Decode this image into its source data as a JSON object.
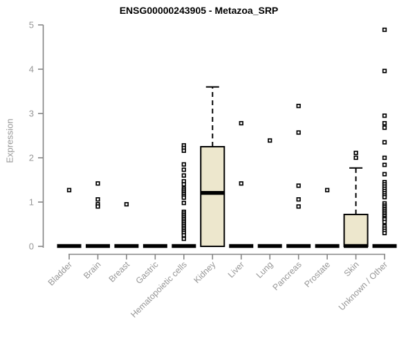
{
  "chart_data": {
    "type": "boxplot",
    "title": "ENSG00000243905 - Metazoa_SRP",
    "ylabel": "Expression",
    "xlabel": "",
    "ylim": [
      0,
      5
    ],
    "yticks": [
      0,
      1,
      2,
      3,
      4,
      5
    ],
    "grid": false,
    "legend": null,
    "categories": [
      "Bladder",
      "Brain",
      "Breast",
      "Gastric",
      "Hematopoietic cells",
      "Kidney",
      "Liver",
      "Lung",
      "Pancreas",
      "Prostate",
      "Skin",
      "Unknown / Other"
    ],
    "boxes": [
      {
        "category": "Bladder",
        "q1": 0,
        "median": 0,
        "q3": 0,
        "whisker_low": 0,
        "whisker_high": 0,
        "outliers": [
          1.27
        ]
      },
      {
        "category": "Brain",
        "q1": 0,
        "median": 0,
        "q3": 0,
        "whisker_low": 0,
        "whisker_high": 0,
        "outliers": [
          1.42,
          1.06,
          0.95,
          0.9
        ]
      },
      {
        "category": "Breast",
        "q1": 0,
        "median": 0,
        "q3": 0,
        "whisker_low": 0,
        "whisker_high": 0,
        "outliers": [
          0.95
        ]
      },
      {
        "category": "Gastric",
        "q1": 0,
        "median": 0,
        "q3": 0,
        "whisker_low": 0,
        "whisker_high": 0,
        "outliers": []
      },
      {
        "category": "Hematopoietic cells",
        "q1": 0,
        "median": 0,
        "q3": 0,
        "whisker_low": 0,
        "whisker_high": 0,
        "outliers": [
          2.28,
          2.22,
          2.16,
          1.85,
          1.73,
          1.6,
          1.47,
          1.4,
          1.3,
          1.26,
          1.22,
          1.18,
          1.14,
          1.1,
          0.98,
          0.78,
          0.74,
          0.7,
          0.66,
          0.62,
          0.58,
          0.54,
          0.5,
          0.46,
          0.42,
          0.38,
          0.34,
          0.3,
          0.25,
          0.17
        ]
      },
      {
        "category": "Kidney",
        "q1": 0,
        "median": 1.2,
        "q3": 2.25,
        "whisker_low": 0,
        "whisker_high": 3.6,
        "outliers": []
      },
      {
        "category": "Liver",
        "q1": 0,
        "median": 0,
        "q3": 0,
        "whisker_low": 0,
        "whisker_high": 0,
        "outliers": [
          2.78,
          1.42
        ]
      },
      {
        "category": "Lung",
        "q1": 0,
        "median": 0,
        "q3": 0,
        "whisker_low": 0,
        "whisker_high": 0,
        "outliers": [
          2.39
        ]
      },
      {
        "category": "Pancreas",
        "q1": 0,
        "median": 0,
        "q3": 0,
        "whisker_low": 0,
        "whisker_high": 0,
        "outliers": [
          3.17,
          2.57,
          1.37,
          1.06,
          0.9
        ]
      },
      {
        "category": "Prostate",
        "q1": 0,
        "median": 0,
        "q3": 0,
        "whisker_low": 0,
        "whisker_high": 0,
        "outliers": [
          1.27
        ]
      },
      {
        "category": "Skin",
        "q1": 0,
        "median": 0,
        "q3": 0.72,
        "whisker_low": 0,
        "whisker_high": 1.77,
        "outliers": [
          2.11,
          2.0
        ]
      },
      {
        "category": "Unknown / Other",
        "q1": 0,
        "median": 0,
        "q3": 0,
        "whisker_low": 0,
        "whisker_high": 0,
        "outliers": [
          4.89,
          3.96,
          2.95,
          2.78,
          2.68,
          2.35,
          2.0,
          1.84,
          1.63,
          1.45,
          1.4,
          1.35,
          1.3,
          1.25,
          1.2,
          1.15,
          1.11,
          0.97,
          0.92,
          0.88,
          0.84,
          0.8,
          0.76,
          0.72,
          0.68,
          0.64,
          0.61,
          0.55,
          0.45,
          0.4,
          0.35,
          0.3
        ]
      }
    ],
    "colors": {
      "box_fill": "#EDE7CD",
      "box_stroke": "#000000",
      "median": "#000000",
      "axis": "#848484",
      "tick_label": "#979797",
      "title": "#000000",
      "background": "#ffffff"
    }
  }
}
